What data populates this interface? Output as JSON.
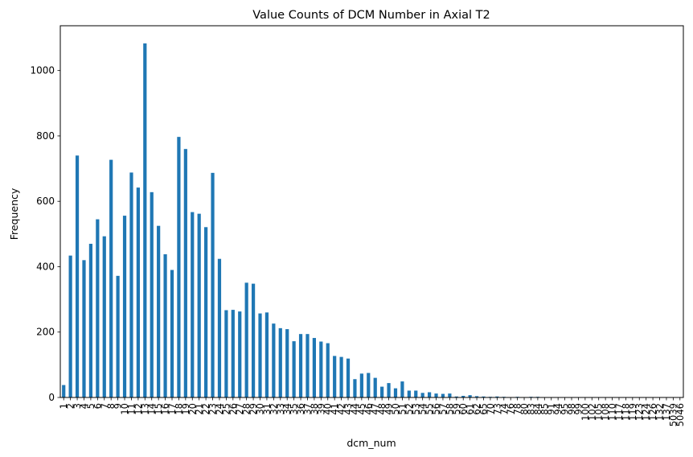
{
  "chart_data": {
    "type": "bar",
    "title": "Value Counts of DCM Number in Axial T2",
    "xlabel": "dcm_num",
    "ylabel": "Frequency",
    "ylim": [
      0,
      1137
    ],
    "yticks": [
      0,
      200,
      400,
      600,
      800,
      1000
    ],
    "grid": false,
    "legend": false,
    "bar_color": "#1f77b4",
    "categories": [
      "1",
      "2",
      "3",
      "4",
      "5",
      "6",
      "7",
      "8",
      "9",
      "10",
      "11",
      "12",
      "13",
      "14",
      "15",
      "16",
      "17",
      "18",
      "19",
      "20",
      "21",
      "22",
      "23",
      "24",
      "25",
      "26",
      "27",
      "28",
      "29",
      "30",
      "31",
      "32",
      "33",
      "34",
      "35",
      "36",
      "37",
      "38",
      "39",
      "40",
      "41",
      "42",
      "43",
      "44",
      "45",
      "46",
      "47",
      "48",
      "49",
      "50",
      "51",
      "52",
      "53",
      "54",
      "55",
      "56",
      "57",
      "58",
      "59",
      "60",
      "61",
      "62",
      "65",
      "70",
      "73",
      "74",
      "76",
      "78",
      "80",
      "83",
      "84",
      "85",
      "91",
      "94",
      "95",
      "98",
      "99",
      "100",
      "102",
      "105",
      "108",
      "110",
      "117",
      "118",
      "119",
      "123",
      "124",
      "126",
      "132",
      "137",
      "5039",
      "5046"
    ],
    "values": [
      38,
      434,
      740,
      420,
      470,
      545,
      493,
      727,
      372,
      556,
      688,
      642,
      1083,
      628,
      525,
      438,
      390,
      797,
      760,
      567,
      562,
      521,
      687,
      424,
      267,
      268,
      263,
      351,
      348,
      257,
      260,
      226,
      212,
      209,
      172,
      194,
      194,
      182,
      171,
      166,
      127,
      124,
      119,
      56,
      73,
      75,
      60,
      33,
      44,
      28,
      49,
      21,
      21,
      14,
      16,
      12,
      11,
      12,
      3,
      5,
      7,
      4,
      3,
      2,
      3,
      2,
      1,
      2,
      1,
      2,
      2,
      1,
      1,
      1,
      1,
      1,
      1,
      1,
      1,
      1,
      1,
      1,
      1,
      1,
      1,
      1,
      1,
      1,
      1,
      1,
      1,
      1
    ]
  }
}
